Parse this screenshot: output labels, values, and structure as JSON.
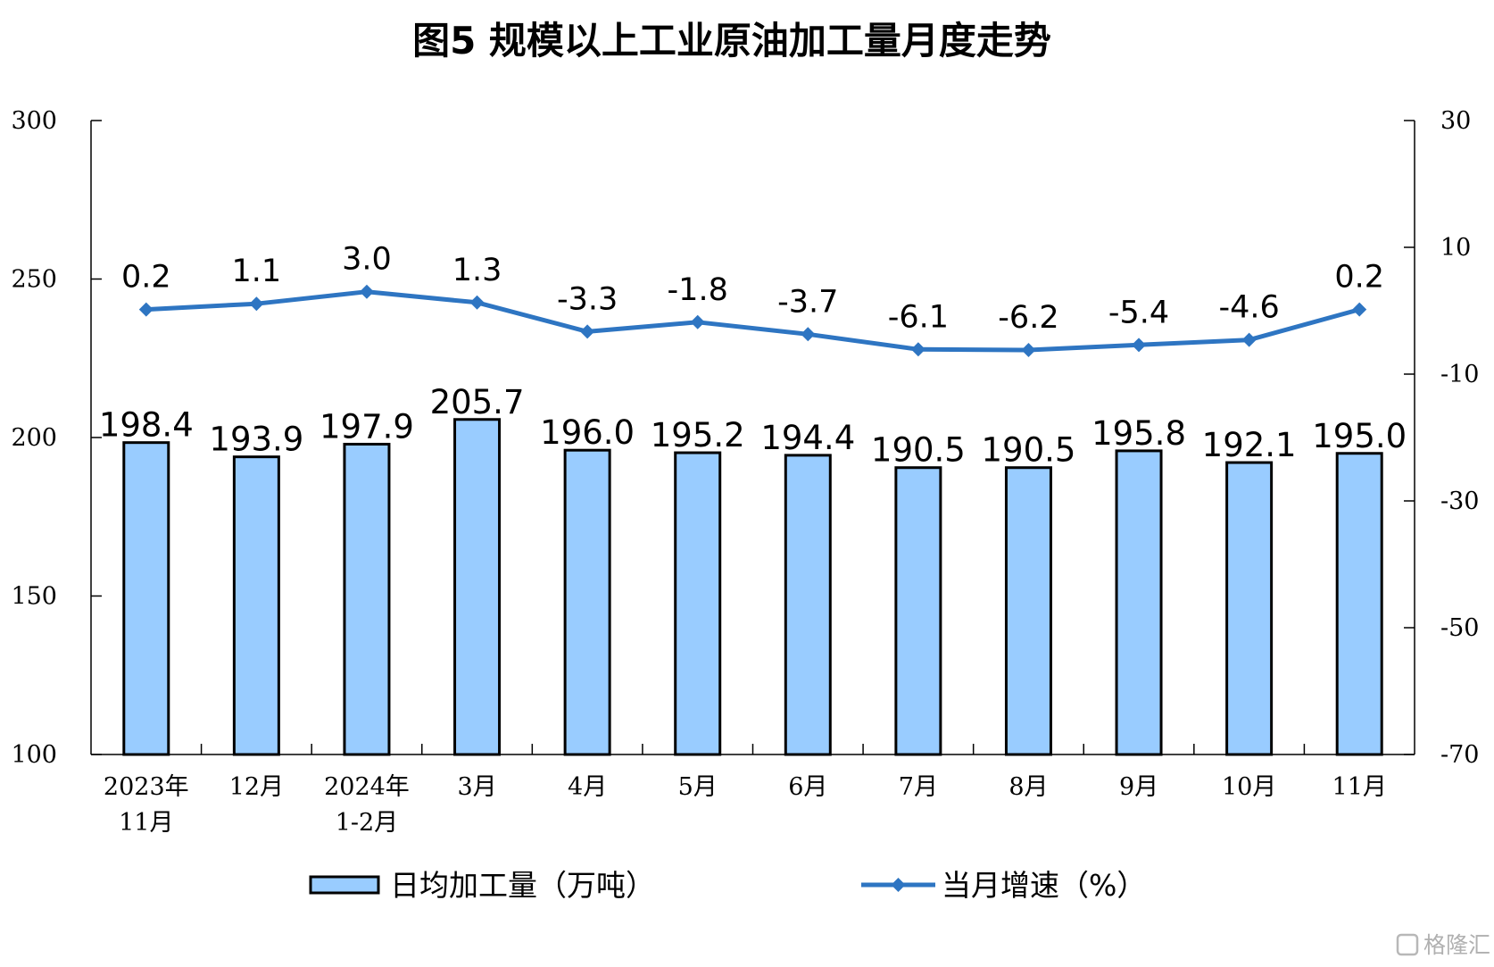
{
  "chart_data": {
    "type": "bar",
    "title": "图5  规模以上工业原油加工量月度走势",
    "categories": [
      [
        "2023年",
        "11月"
      ],
      [
        "12月"
      ],
      [
        "2024年",
        "1-2月"
      ],
      [
        "3月"
      ],
      [
        "4月"
      ],
      [
        "5月"
      ],
      [
        "6月"
      ],
      [
        "7月"
      ],
      [
        "8月"
      ],
      [
        "9月"
      ],
      [
        "10月"
      ],
      [
        "11月"
      ]
    ],
    "series": [
      {
        "name": "日均加工量（万吨）",
        "type": "bar",
        "axis": "left",
        "color": "#99ccff",
        "values": [
          198.4,
          193.9,
          197.9,
          205.7,
          196.0,
          195.2,
          194.4,
          190.5,
          190.5,
          195.8,
          192.1,
          195.0
        ],
        "labels": [
          "198.4",
          "193.9",
          "197.9",
          "205.7",
          "196.0",
          "195.2",
          "194.4",
          "190.5",
          "190.5",
          "195.8",
          "192.1",
          "195.0"
        ]
      },
      {
        "name": "当月增速（%）",
        "type": "line",
        "axis": "right",
        "color": "#2e75c2",
        "values": [
          0.2,
          1.1,
          3.0,
          1.3,
          -3.3,
          -1.8,
          -3.7,
          -6.1,
          -6.2,
          -5.4,
          -4.6,
          0.2
        ],
        "labels": [
          "0.2",
          "1.1",
          "3.0",
          "1.3",
          "-3.3",
          "-1.8",
          "-3.7",
          "-6.1",
          "-6.2",
          "-5.4",
          "-4.6",
          "0.2"
        ]
      }
    ],
    "y_left": {
      "lim": [
        100,
        300
      ],
      "ticks": [
        100,
        150,
        200,
        250,
        300
      ]
    },
    "y_right": {
      "lim": [
        -70,
        30
      ],
      "ticks": [
        -70,
        -50,
        -30,
        -10,
        10,
        30
      ]
    },
    "legend_position": "bottom",
    "grid": false
  },
  "watermark": "格隆汇"
}
